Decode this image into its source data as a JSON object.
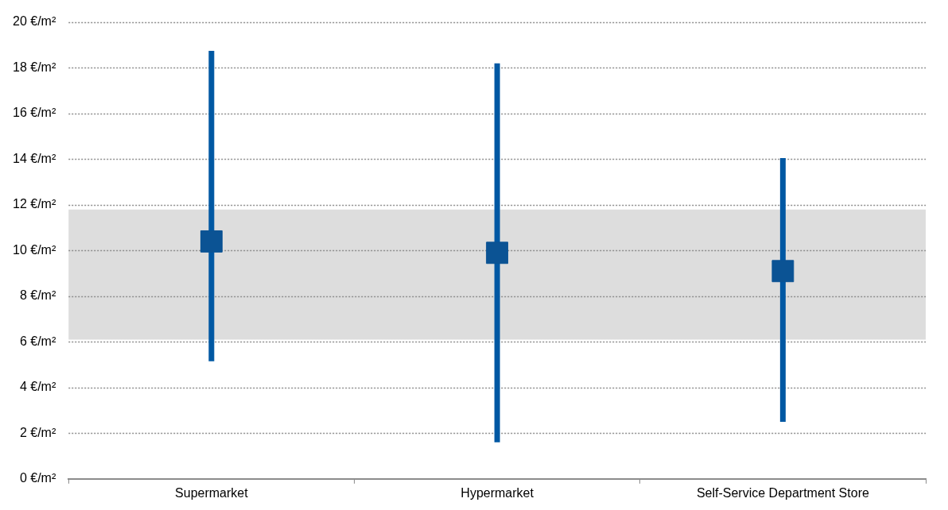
{
  "chart_data": {
    "type": "scatter",
    "categories": [
      "Supermarket",
      "Hypermarket",
      "Self-Service Department Store"
    ],
    "values": [
      10.4,
      9.9,
      9.1
    ],
    "errors": [
      [
        5.15,
        18.75
      ],
      [
        1.6,
        18.2
      ],
      [
        2.5,
        14.05
      ]
    ],
    "color": "#0b5394",
    "marker": "square",
    "ylim": [
      0,
      20
    ],
    "yticks": [
      {
        "value": 0,
        "label": "0 €/m²"
      },
      {
        "value": 2,
        "label": "2 €/m²"
      },
      {
        "value": 4,
        "label": "4 €/m²"
      },
      {
        "value": 6,
        "label": "6 €/m²"
      },
      {
        "value": 8,
        "label": "8 €/m²"
      },
      {
        "value": 10,
        "label": "10 €/m²"
      },
      {
        "value": 12,
        "label": "12 €/m²"
      },
      {
        "value": 14,
        "label": "14 €/m²"
      },
      {
        "value": 16,
        "label": "16 €/m²"
      },
      {
        "value": 18,
        "label": "18 €/m²"
      },
      {
        "value": 20,
        "label": "20 €/m²"
      }
    ],
    "bands": [
      {
        "axis": "y",
        "from": 6.1,
        "to": 11.8,
        "color": "#dddddd"
      }
    ],
    "grid": "y",
    "legend": false
  }
}
